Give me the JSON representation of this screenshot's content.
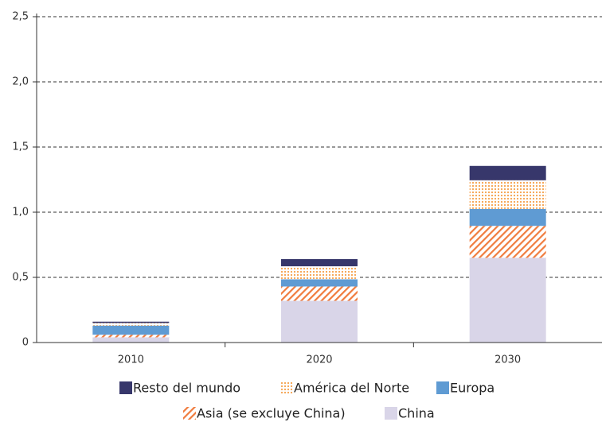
{
  "chart_data": {
    "type": "stacked_bar",
    "categories": [
      "2010",
      "2020",
      "2030"
    ],
    "series": [
      {
        "name": "China",
        "color": "#d9d5e8",
        "pattern": "solid",
        "values": [
          0.04,
          0.32,
          0.65
        ]
      },
      {
        "name": "Asia (se excluye China)",
        "color": "#f07c3e",
        "pattern": "stripes",
        "values": [
          0.02,
          0.11,
          0.245
        ]
      },
      {
        "name": "Europa",
        "color": "#5f9bd3",
        "pattern": "solid",
        "values": [
          0.07,
          0.055,
          0.13
        ]
      },
      {
        "name": "América del Norte",
        "color": "#f5a04a",
        "pattern": "dots",
        "values": [
          0.02,
          0.1,
          0.22
        ]
      },
      {
        "name": "Resto del mundo",
        "color": "#37376b",
        "pattern": "solid",
        "values": [
          0.01,
          0.055,
          0.11
        ]
      }
    ],
    "ylim": [
      0,
      2.5
    ],
    "yticks": [
      0,
      {
        "value": 0.5,
        "label": "0,5"
      },
      {
        "value": 1.0,
        "label": "1,0"
      },
      {
        "value": 1.5,
        "label": "1,5"
      },
      {
        "value": 2.0,
        "label": "2,0"
      },
      {
        "value": 2.5,
        "label": "2,5"
      }
    ],
    "grid": true
  }
}
